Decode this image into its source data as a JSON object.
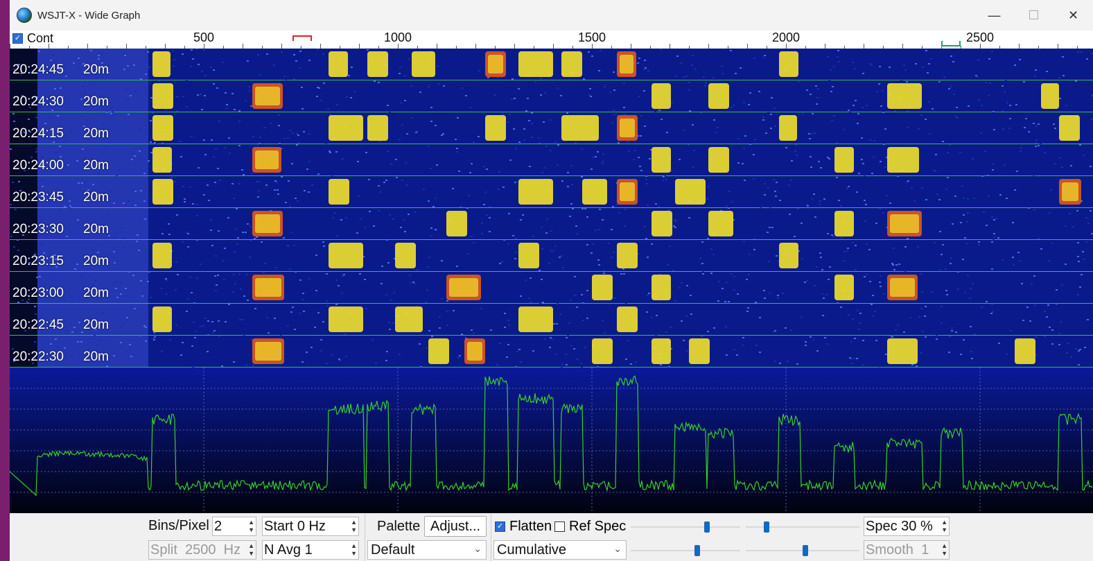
{
  "window": {
    "title": "WSJT-X - Wide Graph",
    "minimize": "—",
    "maximize": "☐",
    "close": "✕"
  },
  "freq_axis": {
    "cont_label": "Cont",
    "cont_checked": true,
    "labels": [
      "500",
      "1000",
      "1500",
      "2000",
      "2500"
    ]
  },
  "waterfall_rows": [
    {
      "time": "20:24:45",
      "band": "20m"
    },
    {
      "time": "20:24:30",
      "band": "20m"
    },
    {
      "time": "20:24:15",
      "band": "20m"
    },
    {
      "time": "20:24:00",
      "band": "20m"
    },
    {
      "time": "20:23:45",
      "band": "20m"
    },
    {
      "time": "20:23:30",
      "band": "20m"
    },
    {
      "time": "20:23:15",
      "band": "20m"
    },
    {
      "time": "20:23:00",
      "band": "20m"
    },
    {
      "time": "20:22:45",
      "band": "20m"
    },
    {
      "time": "20:22:30",
      "band": "20m"
    }
  ],
  "controls": {
    "bins_pixel_label": "Bins/Pixel",
    "bins_pixel_value": "2",
    "split_label": "Split",
    "split_value": "2500",
    "split_unit": "Hz",
    "start_label": "Start",
    "start_value": "0 Hz",
    "navg_label": "N Avg",
    "navg_value": "1",
    "palette_label": "Palette",
    "adjust_label": "Adjust...",
    "palette_value": "Default",
    "flatten_label": "Flatten",
    "flatten_checked": true,
    "refspec_label": "Ref Spec",
    "refspec_checked": false,
    "spectrum_mode": "Cumulative",
    "spec_label": "Spec",
    "spec_value": "30 %",
    "smooth_label": "Smooth",
    "smooth_value": "1"
  },
  "colors": {
    "waterfall_bg": "#0a1a8a",
    "signal_yellow": "#f2e12a",
    "signal_red": "#e05a1a",
    "spectrum_trace": "#34d12a",
    "row_divider": "#2fbf4f"
  }
}
